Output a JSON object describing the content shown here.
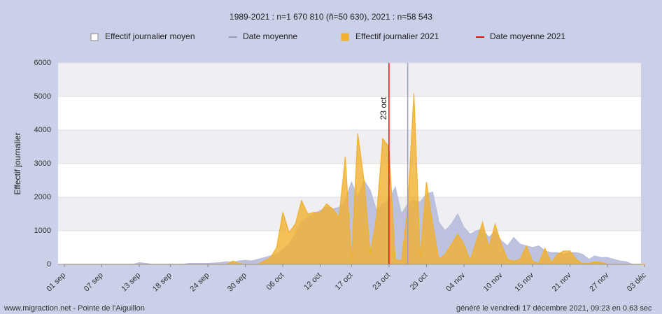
{
  "chart_data": {
    "type": "area",
    "title": "1989-2021 : n=1 670 810 (ñ=50 630), 2021 : n=58 543",
    "y_label": "Effectif journalier",
    "footer_left": "www.migraction.net - Pointe de l'Aiguillon",
    "footer_right": "généré le vendredi 17 décembre 2021, 09:23 en 0.63 sec",
    "categories": [
      "01 sep",
      null,
      null,
      null,
      null,
      null,
      "07 sep",
      null,
      null,
      null,
      null,
      null,
      "13 sep",
      null,
      null,
      null,
      null,
      "18 sep",
      null,
      null,
      null,
      null,
      null,
      "24 sep",
      null,
      null,
      null,
      null,
      null,
      "30 sep",
      null,
      null,
      null,
      null,
      null,
      "06 oct",
      null,
      null,
      null,
      null,
      null,
      "12 oct",
      null,
      null,
      null,
      null,
      "17 oct",
      null,
      null,
      null,
      null,
      null,
      "23 oct",
      null,
      null,
      null,
      null,
      null,
      "29 oct",
      null,
      null,
      null,
      null,
      null,
      "04 nov",
      null,
      null,
      null,
      null,
      null,
      "10 nov",
      null,
      null,
      null,
      null,
      "15 nov",
      null,
      null,
      null,
      null,
      null,
      "21 nov",
      null,
      null,
      null,
      null,
      null,
      "27 nov",
      null,
      null,
      null,
      null,
      null,
      "03 déc"
    ],
    "series": [
      {
        "name": "Effectif journalier moyen",
        "color": "#b6bcdb",
        "values": [
          0,
          0,
          0,
          0,
          0,
          0,
          0,
          0,
          0,
          0,
          0,
          0,
          50,
          30,
          0,
          0,
          0,
          0,
          0,
          0,
          30,
          30,
          30,
          30,
          40,
          50,
          80,
          60,
          100,
          120,
          100,
          150,
          200,
          250,
          300,
          450,
          600,
          900,
          1300,
          1400,
          1500,
          1600,
          1700,
          1650,
          1700,
          1900,
          2450,
          2000,
          2500,
          2200,
          1600,
          1800,
          1900,
          2300,
          1500,
          1800,
          1900,
          1850,
          2100,
          2150,
          1250,
          1000,
          1200,
          1500,
          1100,
          900,
          1000,
          1050,
          800,
          1000,
          700,
          550,
          800,
          600,
          550,
          500,
          550,
          400,
          350,
          350,
          300,
          350,
          350,
          300,
          150,
          250,
          200,
          200,
          150,
          100,
          80,
          0,
          0,
          0
        ]
      },
      {
        "name": "Effectif journalier 2021",
        "color": "#f0b030",
        "values": [
          0,
          0,
          0,
          0,
          0,
          0,
          0,
          0,
          0,
          0,
          0,
          0,
          0,
          0,
          0,
          0,
          0,
          0,
          0,
          0,
          0,
          0,
          0,
          0,
          0,
          0,
          0,
          100,
          20,
          0,
          0,
          0,
          100,
          200,
          500,
          1550,
          950,
          1200,
          1900,
          1500,
          1550,
          1550,
          1800,
          1650,
          1400,
          3200,
          100,
          3900,
          2500,
          300,
          1400,
          3750,
          3500,
          150,
          100,
          1700,
          5100,
          200,
          2450,
          1200,
          150,
          300,
          600,
          900,
          600,
          100,
          700,
          1250,
          500,
          1200,
          600,
          150,
          100,
          150,
          550,
          100,
          30,
          480,
          50,
          300,
          400,
          400,
          150,
          20,
          30,
          80,
          60,
          0,
          0,
          0,
          0,
          0,
          0,
          0
        ]
      }
    ],
    "date_lines": [
      {
        "name": "Date moyenne",
        "color": "#9aa0b8",
        "x": 55
      },
      {
        "name": "Date moyenne 2021",
        "color": "#e01010",
        "x": 52,
        "label": "23 oct"
      }
    ],
    "ylim": [
      0,
      6000
    ],
    "yticks": [
      0,
      1000,
      2000,
      3000,
      4000,
      5000,
      6000
    ],
    "grid": true
  }
}
